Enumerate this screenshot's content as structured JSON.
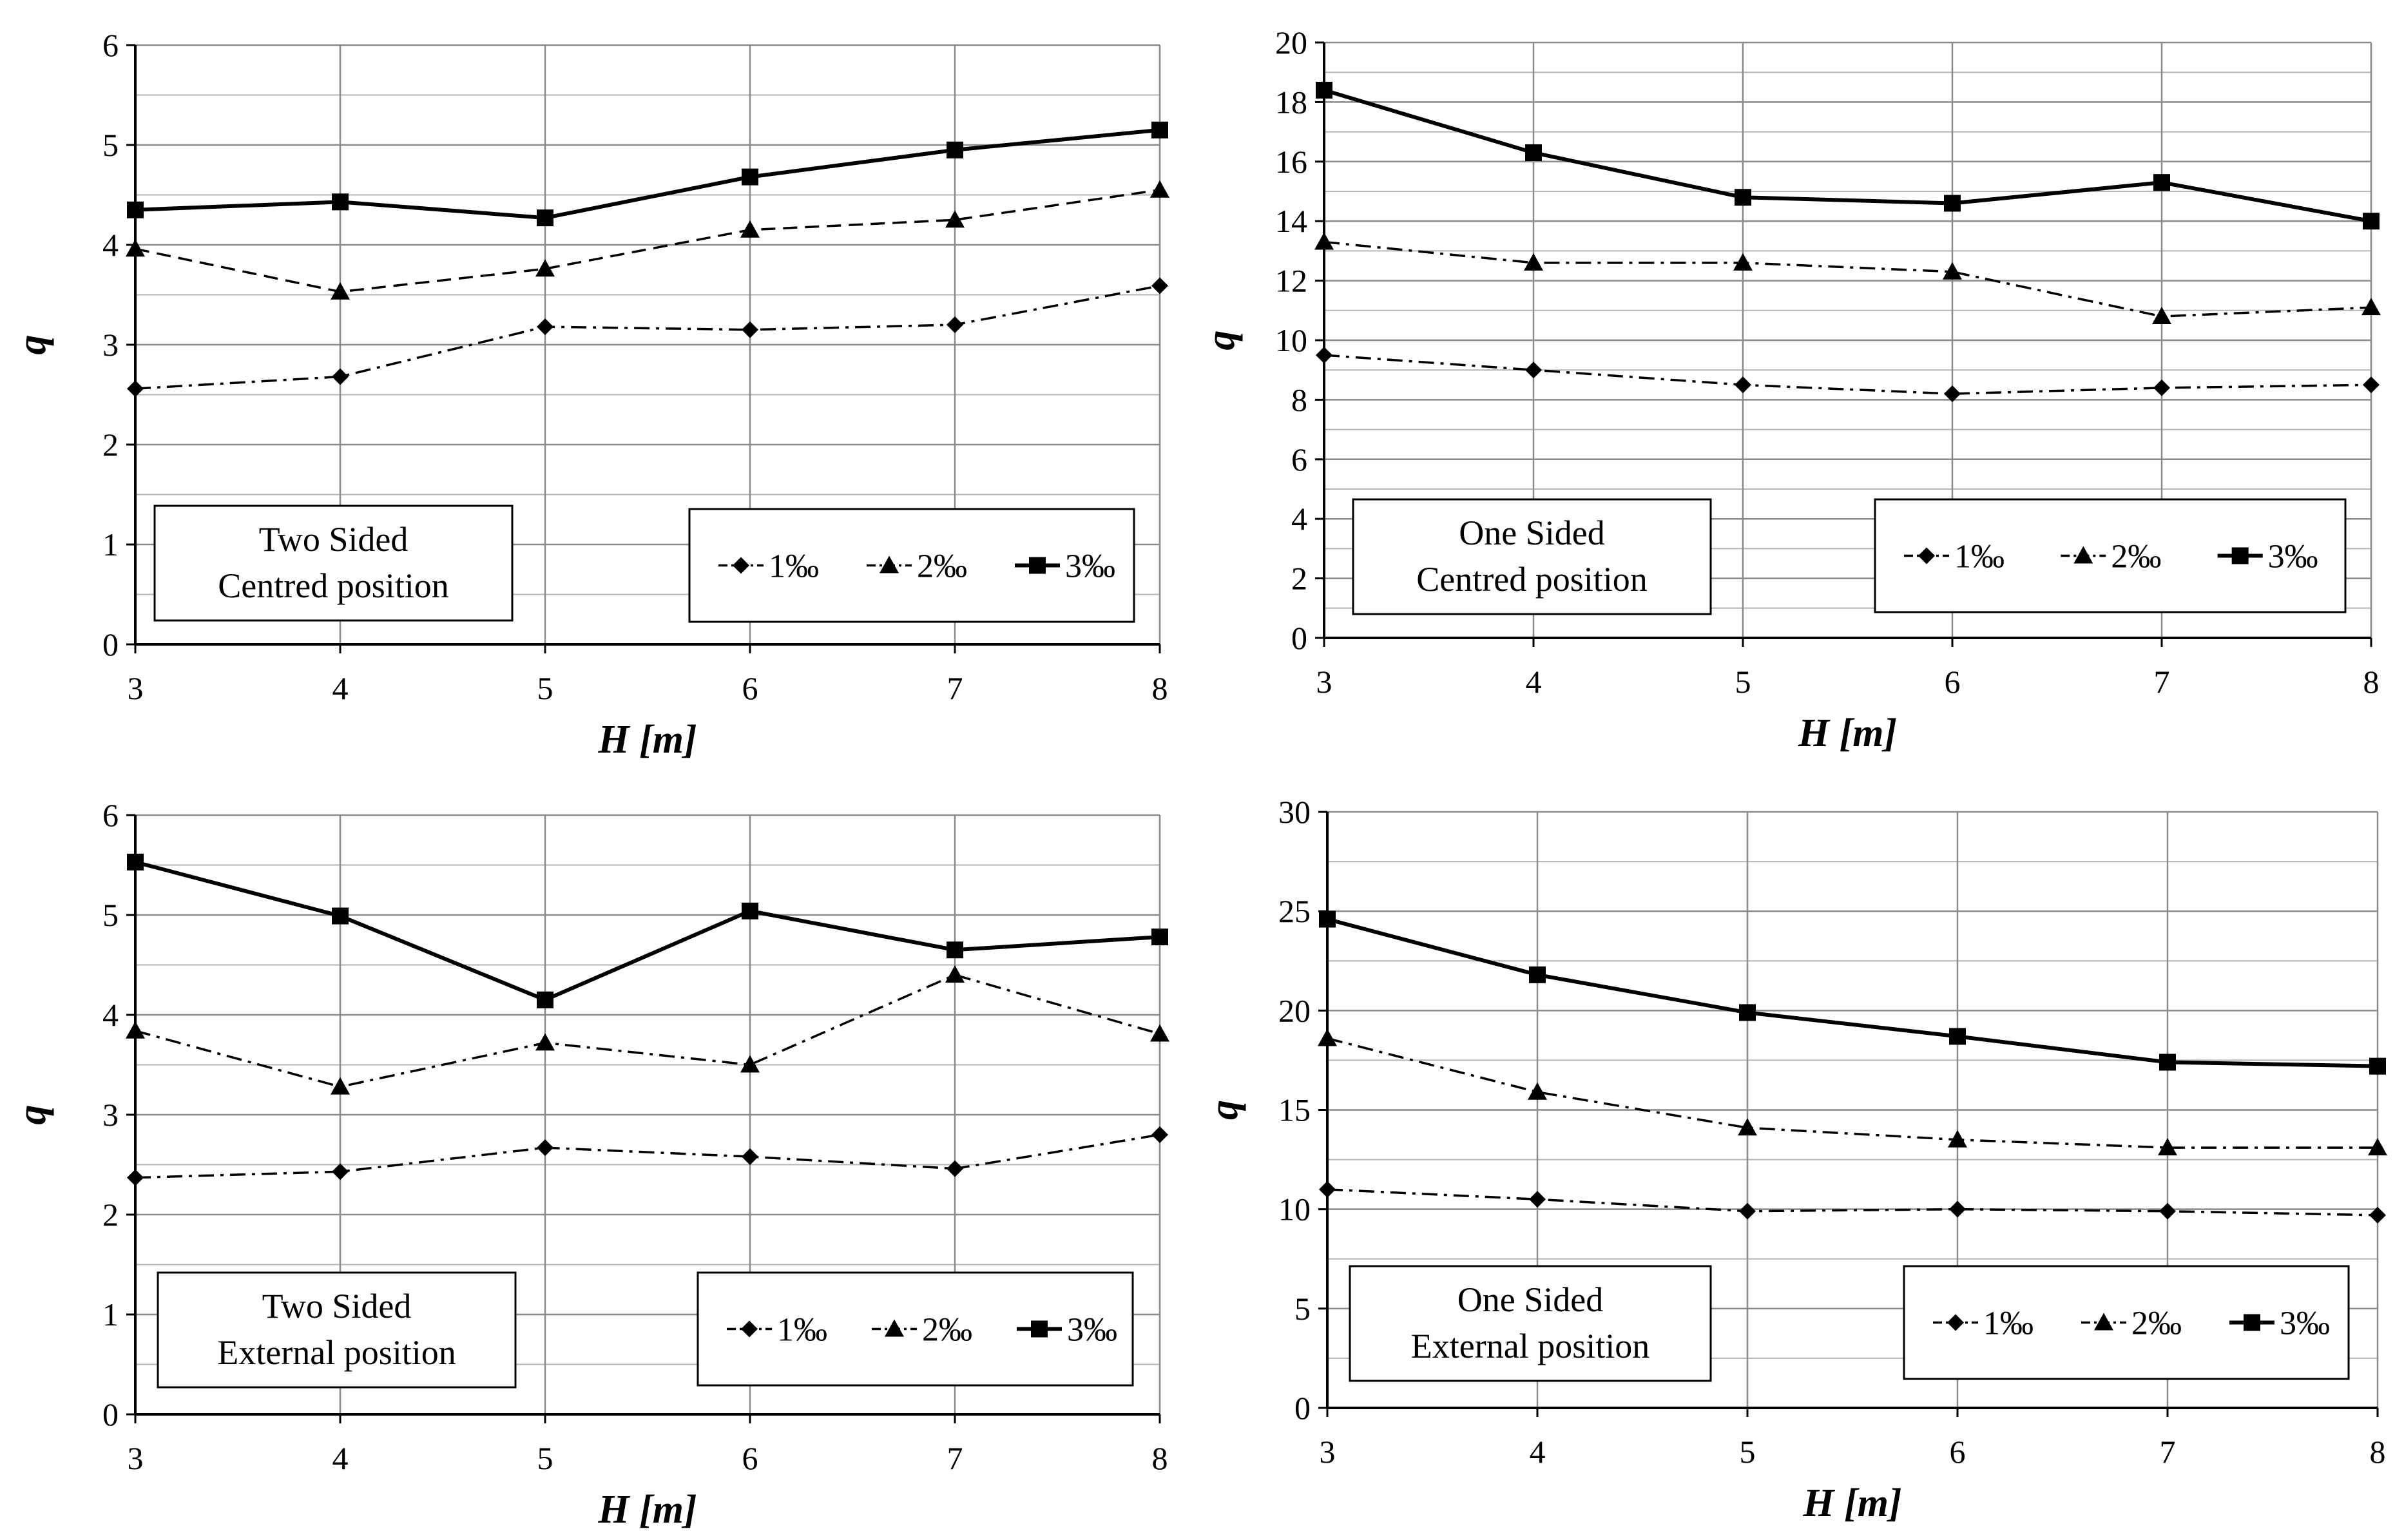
{
  "chart_data": [
    {
      "type": "line",
      "annotation": [
        "Two Sided",
        "Centred position"
      ],
      "xlabel": "H [m]",
      "ylabel": "q",
      "x": [
        3,
        4,
        5,
        6,
        7,
        8
      ],
      "xlim": [
        3,
        8
      ],
      "ylim": [
        0,
        6
      ],
      "yticks": [
        0,
        1,
        2,
        3,
        4,
        5,
        6
      ],
      "ygrid_step": 0.5,
      "legend_position": "bottom-right",
      "series": [
        {
          "name": "1‰",
          "marker": "diamond",
          "line": "dash-dot",
          "values": [
            2.56,
            2.68,
            3.18,
            3.15,
            3.2,
            3.59
          ]
        },
        {
          "name": "2‰",
          "marker": "triangle",
          "line": "dashed",
          "values": [
            3.96,
            3.53,
            3.76,
            4.15,
            4.25,
            4.55
          ]
        },
        {
          "name": "3‰",
          "marker": "square",
          "line": "solid",
          "values": [
            4.35,
            4.43,
            4.27,
            4.68,
            4.95,
            5.15
          ]
        }
      ]
    },
    {
      "type": "line",
      "annotation": [
        "One Sided",
        "Centred position"
      ],
      "xlabel": "H [m]",
      "ylabel": "q",
      "x": [
        3,
        4,
        5,
        6,
        7,
        8
      ],
      "xlim": [
        3,
        8
      ],
      "ylim": [
        0,
        20
      ],
      "yticks": [
        0,
        2,
        4,
        6,
        8,
        10,
        12,
        14,
        16,
        18,
        20
      ],
      "ygrid_step": 1,
      "legend_position": "bottom-right",
      "series": [
        {
          "name": "1‰",
          "marker": "diamond",
          "line": "dash-dot",
          "values": [
            9.5,
            9.0,
            8.5,
            8.2,
            8.4,
            8.5
          ]
        },
        {
          "name": "2‰",
          "marker": "triangle",
          "line": "dash-dot",
          "values": [
            13.3,
            12.6,
            12.6,
            12.3,
            10.8,
            11.1
          ]
        },
        {
          "name": "3‰",
          "marker": "square",
          "line": "solid",
          "values": [
            18.4,
            16.3,
            14.8,
            14.6,
            15.3,
            14.0
          ]
        }
      ]
    },
    {
      "type": "line",
      "annotation": [
        "Two Sided",
        "External position"
      ],
      "xlabel": "H [m]",
      "ylabel": "q",
      "x": [
        3,
        4,
        5,
        6,
        7,
        8
      ],
      "xlim": [
        3,
        8
      ],
      "ylim": [
        0,
        6
      ],
      "yticks": [
        0,
        1,
        2,
        3,
        4,
        5,
        6
      ],
      "ygrid_step": 0.5,
      "legend_position": "bottom-right",
      "series": [
        {
          "name": "1‰",
          "marker": "diamond",
          "line": "dash-dot",
          "values": [
            2.37,
            2.43,
            2.67,
            2.58,
            2.46,
            2.8
          ]
        },
        {
          "name": "2‰",
          "marker": "triangle",
          "line": "dash-dot",
          "values": [
            3.84,
            3.28,
            3.72,
            3.5,
            4.4,
            3.81
          ]
        },
        {
          "name": "3‰",
          "marker": "square",
          "line": "solid",
          "values": [
            5.53,
            4.99,
            4.15,
            5.04,
            4.65,
            4.78
          ]
        }
      ]
    },
    {
      "type": "line",
      "annotation": [
        "One Sided",
        "External position"
      ],
      "xlabel": "H [m]",
      "ylabel": "q",
      "x": [
        3,
        4,
        5,
        6,
        7,
        8
      ],
      "xlim": [
        3,
        8
      ],
      "ylim": [
        0,
        30
      ],
      "yticks": [
        0,
        5,
        10,
        15,
        20,
        25,
        30
      ],
      "ygrid_step": 2.5,
      "legend_position": "bottom-right",
      "series": [
        {
          "name": "1‰",
          "marker": "diamond",
          "line": "dash-dot",
          "values": [
            11.0,
            10.5,
            9.9,
            10.0,
            9.9,
            9.7
          ]
        },
        {
          "name": "2‰",
          "marker": "triangle",
          "line": "dash-dot",
          "values": [
            18.6,
            15.9,
            14.1,
            13.5,
            13.1,
            13.1
          ]
        },
        {
          "name": "3‰",
          "marker": "square",
          "line": "solid",
          "values": [
            24.6,
            21.8,
            19.9,
            18.7,
            17.4,
            17.2
          ]
        }
      ]
    }
  ]
}
